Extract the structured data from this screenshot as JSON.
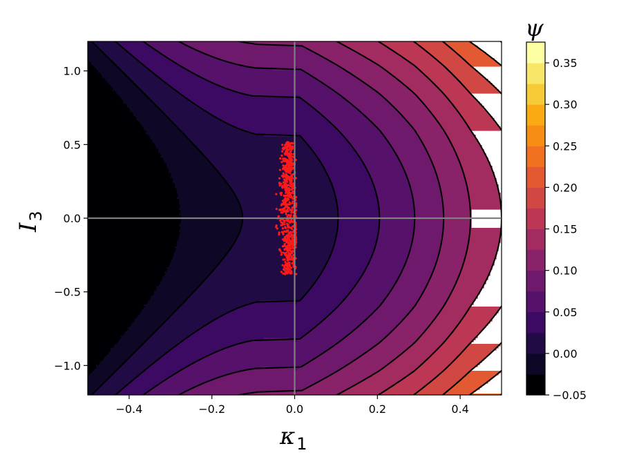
{
  "chart_data": {
    "type": "heatmap",
    "subtype": "filled-contour",
    "colormap": "inferno",
    "xlabel": "κ",
    "xlabel_sub": "1",
    "ylabel": "I",
    "ylabel_sub": "3",
    "colorbar_label": "ψ",
    "xlim": [
      -0.5,
      0.5
    ],
    "ylim": [
      -1.2,
      1.2
    ],
    "x_ticks": [
      -0.4,
      -0.2,
      0.0,
      0.2,
      0.4
    ],
    "x_tick_labels": [
      "−0.4",
      "−0.2",
      "0.0",
      "0.2",
      "0.4"
    ],
    "y_ticks": [
      -1.0,
      -0.5,
      0.0,
      0.5,
      1.0
    ],
    "y_tick_labels": [
      "−1.0",
      "−0.5",
      "0.0",
      "0.5",
      "1.0"
    ],
    "color_range": [
      -0.05,
      0.375
    ],
    "color_levels": [
      -0.05,
      -0.025,
      0.0,
      0.025,
      0.05,
      0.075,
      0.1,
      0.125,
      0.15,
      0.175,
      0.2,
      0.225,
      0.25,
      0.275,
      0.3,
      0.325,
      0.35,
      0.375
    ],
    "colorbar_ticks": [
      -0.05,
      0.0,
      0.05,
      0.1,
      0.15,
      0.2,
      0.25,
      0.3,
      0.35
    ],
    "colorbar_tick_labels": [
      "−0.05",
      "0.00",
      "0.05",
      "0.10",
      "0.15",
      "0.20",
      "0.25",
      "0.30",
      "0.35"
    ],
    "contour_line_color": "#000000",
    "reference_lines": {
      "x": 0.0,
      "y": 0.0,
      "color": "#808080"
    },
    "contour_vertices_kappa": [
      0.0,
      0.105,
      0.205,
      0.29,
      0.36,
      0.425,
      0.5
    ],
    "scatter": {
      "name": "samples",
      "color": "#ff1a1a",
      "x_center": -0.015,
      "x_spread": 0.012,
      "y_range": [
        -0.38,
        0.52
      ],
      "count": 700
    },
    "grid": false
  }
}
